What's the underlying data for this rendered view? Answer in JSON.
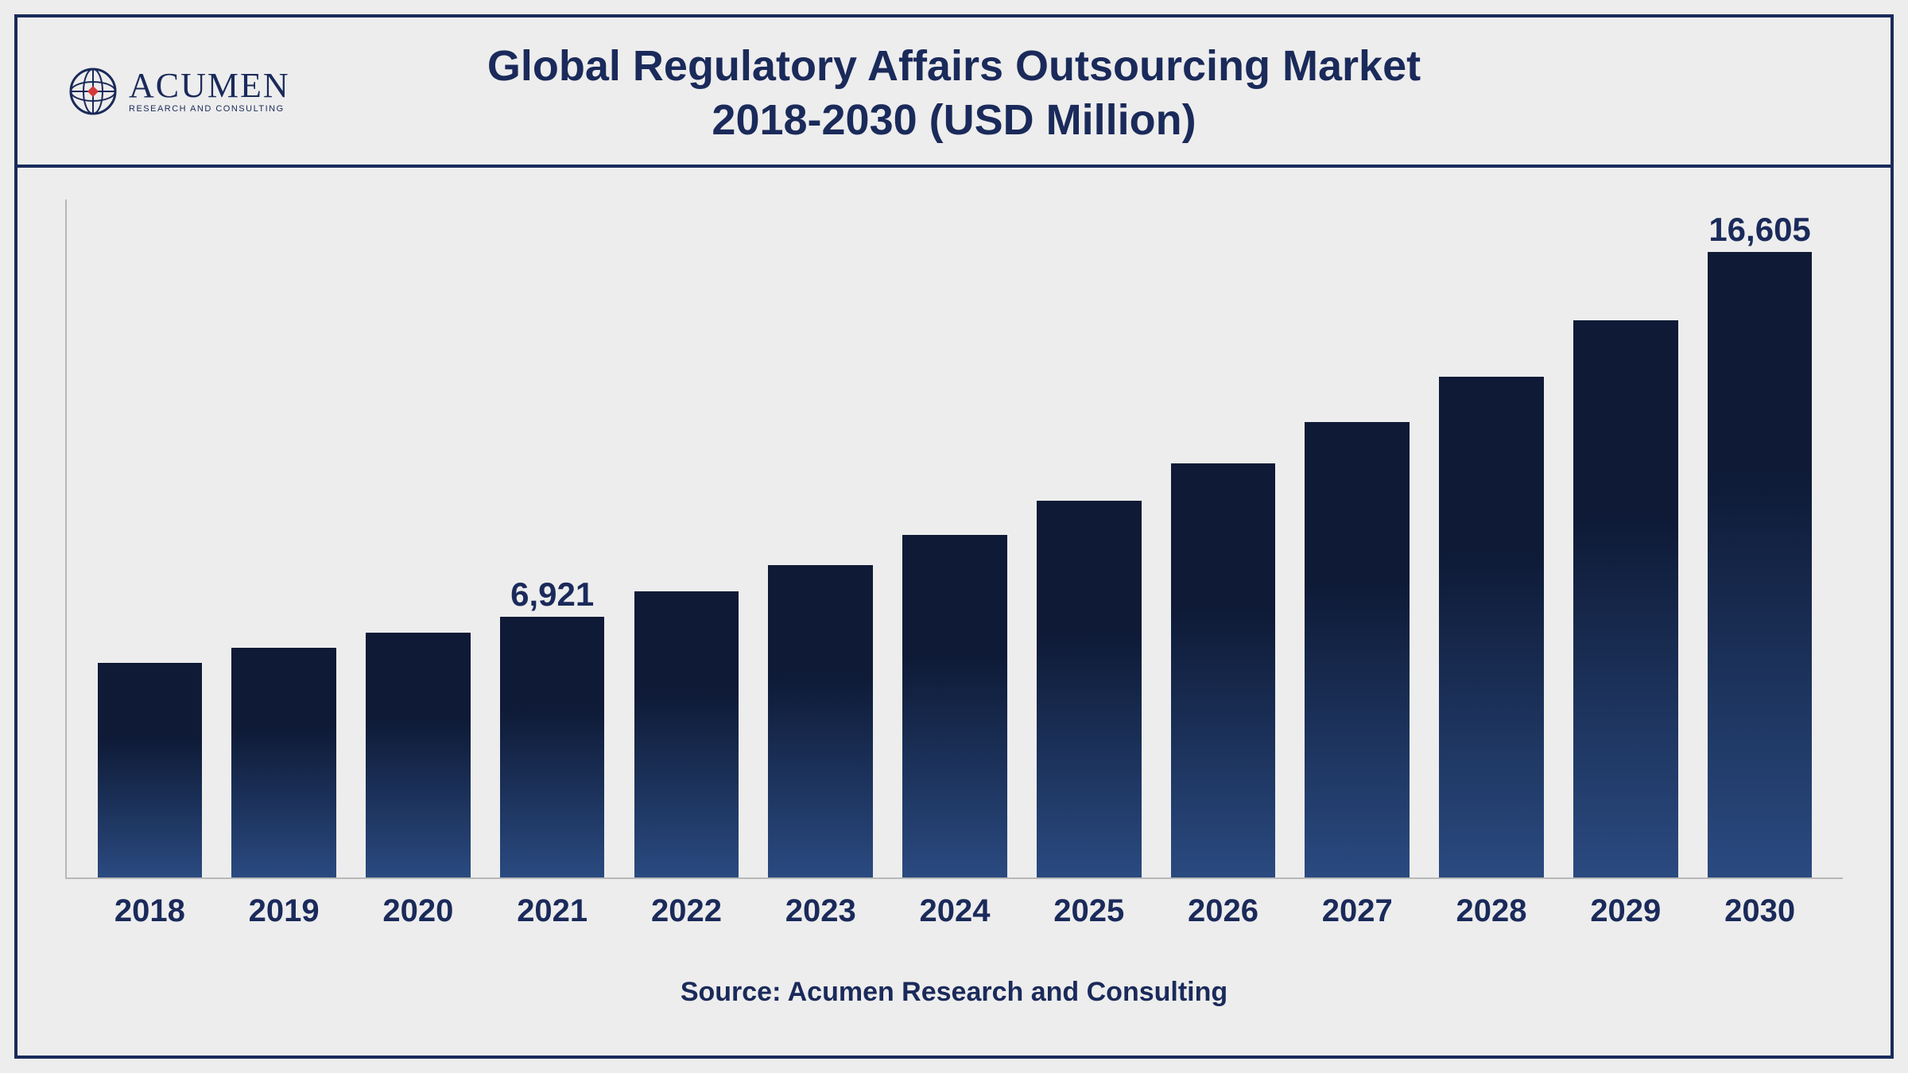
{
  "header": {
    "title_line1": "Global Regulatory Affairs Outsourcing Market",
    "title_line2": "2018-2030 (USD Million)",
    "title_color": "#1a2a5a",
    "title_fontsize": 54,
    "title_fontweight": 700
  },
  "logo": {
    "main_text": "ACUMEN",
    "sub_text": "RESEARCH AND CONSULTING",
    "globe_stroke": "#1a2a5a",
    "globe_accent": "#d43a3a"
  },
  "chart": {
    "type": "bar",
    "categories": [
      "2018",
      "2019",
      "2020",
      "2021",
      "2022",
      "2023",
      "2024",
      "2025",
      "2026",
      "2027",
      "2028",
      "2029",
      "2030"
    ],
    "values": [
      5700,
      6100,
      6500,
      6921,
      7600,
      8300,
      9100,
      10000,
      11000,
      12100,
      13300,
      14800,
      16605
    ],
    "value_labels": {
      "3": "6,921",
      "12": "16,605"
    },
    "ylim": [
      0,
      18000
    ],
    "bar_width_pct": 78,
    "bar_gradient_top": "#0e1a36",
    "bar_gradient_bottom": "#2a4a80",
    "background_color": "#ededed",
    "border_color": "#1a2a5a",
    "axis_color": "#b8b8b8",
    "xtick_fontsize": 40,
    "xtick_fontweight": 700,
    "xtick_color": "#1a2a5a",
    "value_label_fontsize": 42,
    "value_label_fontweight": 700,
    "value_label_color": "#1a2a5a"
  },
  "source": {
    "text": "Source: Acumen Research and Consulting",
    "fontsize": 34,
    "fontweight": 700,
    "color": "#1a2a5a"
  }
}
